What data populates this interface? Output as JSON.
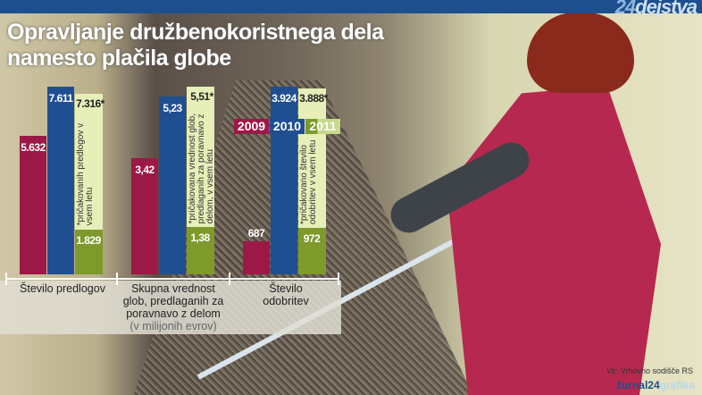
{
  "brand": {
    "prefix": "24",
    "name": "dejstva"
  },
  "title_line1": "Opravljanje družbenokoristnega dela",
  "title_line2": "namesto plačila globe",
  "colors": {
    "2009": "#9c1847",
    "2010": "#1f4f91",
    "2011_actual": "#7d9a2b",
    "2011_expected": "#e6efb8"
  },
  "chart_data": {
    "type": "bar",
    "legend": [
      "2009",
      "2010",
      "2011"
    ],
    "legend_placement": "top-center",
    "groups": [
      {
        "label": "Število predlogov",
        "values": {
          "2009": 5632,
          "2010": 7611,
          "2011": 1829,
          "2011_expected": 7316
        },
        "labels": {
          "2009": "5.632",
          "2010": "7.611",
          "2011": "1.829",
          "2011_expected": "7.316*"
        },
        "note": "*pričakovanih predlogov v vsem letu"
      },
      {
        "label": "Skupna vrednost glob, predlaganih za poravnavo z delom",
        "unit": "(v milijonih evrov)",
        "values": {
          "2009": 3.42,
          "2010": 5.23,
          "2011": 1.38,
          "2011_expected": 5.51
        },
        "labels": {
          "2009": "3,42",
          "2010": "5,23",
          "2011": "1,38",
          "2011_expected": "5,51*"
        },
        "note": "*pričakovana vrednost glob, predlaganih za poravnavo z delom, v vsem letu"
      },
      {
        "label": "Število odobritev",
        "values": {
          "2009": 687,
          "2010": 3924,
          "2011": 972,
          "2011_expected": 3888
        },
        "labels": {
          "2009": "687",
          "2010": "3.924",
          "2011": "972",
          "2011_expected": "3.888*"
        },
        "note": "*pričakovano število odobritev v vsem letu"
      }
    ]
  },
  "source": "Vir: Vrhovno sodišče RS",
  "credit": {
    "prefix": "žurnal24",
    "suffix": "grafika"
  }
}
